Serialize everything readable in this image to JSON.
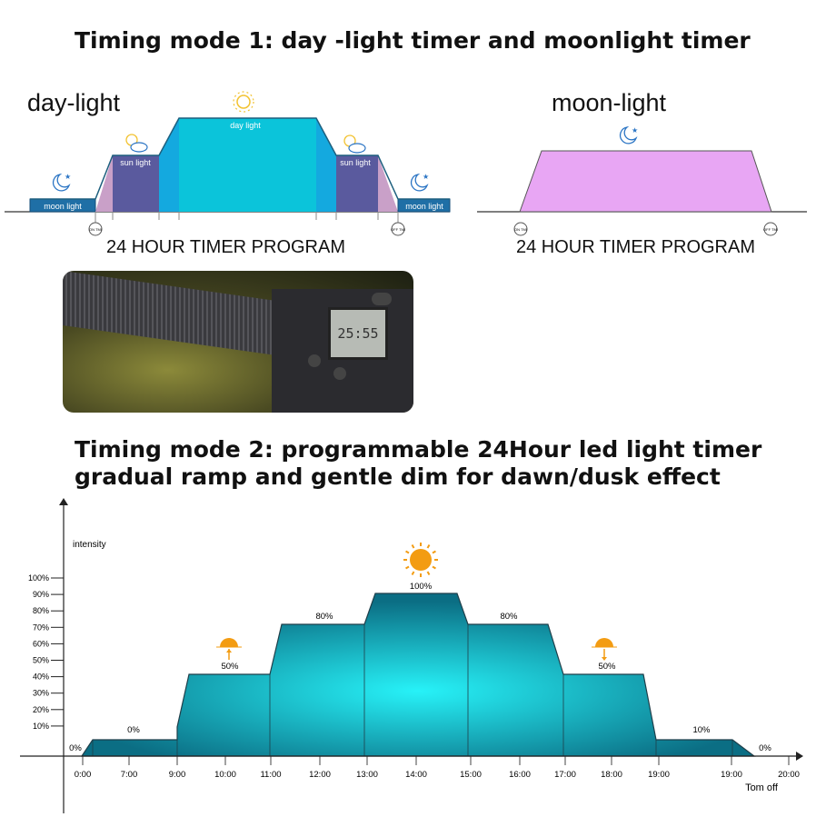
{
  "mode1": {
    "title": "Timing mode 1: day -light timer and moonlight timer",
    "daylight": {
      "heading": "day-light",
      "labels": {
        "moon": "moon light",
        "sun": "sun light",
        "day": "day light"
      },
      "on_badge": "ON TMI",
      "off_badge": "OFF TMI",
      "caption": "24 HOUR TIMER PROGRAM",
      "colors": {
        "moon": "#1f6fa6",
        "pink": "#c9a0c8",
        "sun": "#5a5a9e",
        "ramp": "#14a9df",
        "day": "#0bc4da"
      }
    },
    "moonlight": {
      "heading": "moon-light",
      "on_badge": "ON TMI",
      "off_badge": "OFF TMI",
      "caption": "24 HOUR TIMER PROGRAM",
      "color": "#e8a6f4"
    }
  },
  "photo": {
    "display_digits": "25:55"
  },
  "mode2": {
    "title_line1": "Timing mode 2: programmable 24Hour led light timer",
    "title_line2": "gradual ramp and gentle dim for dawn/dusk effect"
  },
  "chart_data": {
    "type": "area",
    "ylabel": "intensity",
    "y_ticks": [
      "100%",
      "90%",
      "80%",
      "70%",
      "60%",
      "50%",
      "40%",
      "30%",
      "20%",
      "10%"
    ],
    "x_ticks": [
      "0:00",
      "7:00",
      "9:00",
      "10:00",
      "11:00",
      "12:00",
      "13:00",
      "14:00",
      "15:00",
      "16:00",
      "17:00",
      "18:00",
      "19:00",
      "19:00",
      "20:00"
    ],
    "x_note": "Tom off",
    "segment_labels": [
      "0%",
      "0%",
      "50%",
      "80%",
      "100%",
      "80%",
      "50%",
      "10%",
      "0%"
    ],
    "levels": [
      0,
      0,
      50,
      80,
      100,
      80,
      50,
      10,
      0
    ],
    "fill_colors": {
      "edge": "#0b6e84",
      "center": "#27f2f8"
    },
    "sun_icon_color": "#f39c12"
  }
}
